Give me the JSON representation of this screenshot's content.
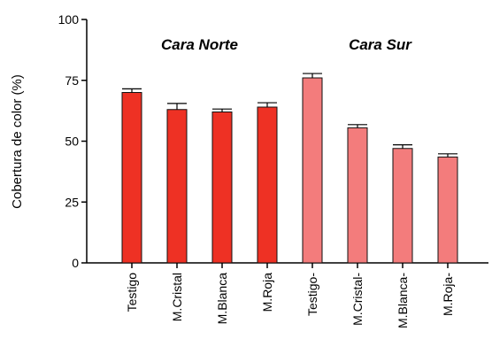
{
  "chart_data": {
    "type": "bar",
    "ylabel": "Cobertura de color (%)",
    "xlabel": "",
    "title": "",
    "ylim": [
      0,
      100
    ],
    "yticks": [
      0,
      25,
      50,
      75,
      100
    ],
    "grid": false,
    "categories": [
      "Testigo",
      "M.Cristal",
      "M.Blanca",
      "M.Roja",
      "Testigo-",
      "M.Cristal-",
      "M.Blanca-",
      "M.Roja-"
    ],
    "values": [
      70,
      63,
      62,
      64,
      76,
      55.5,
      47,
      43.5
    ],
    "errors": [
      1.5,
      2.5,
      1.2,
      1.8,
      1.8,
      1.3,
      1.5,
      1.3
    ],
    "bar_colors": [
      "#ee3124",
      "#ee3124",
      "#ee3124",
      "#ee3124",
      "#f37c7c",
      "#f37c7c",
      "#f37c7c",
      "#f37c7c"
    ],
    "annotations": [
      {
        "text": "Cara Norte",
        "group": [
          0,
          3
        ]
      },
      {
        "text": "Cara Sur",
        "group": [
          4,
          7
        ]
      }
    ]
  }
}
